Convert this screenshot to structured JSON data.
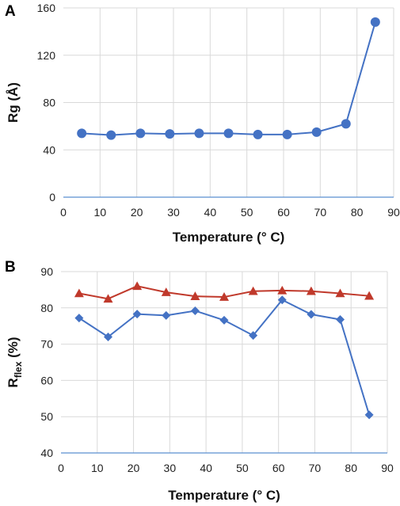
{
  "colors": {
    "blue": "#4472c4",
    "red": "#c0392b",
    "grid": "#d9d9d9",
    "axis": "#5b8fd1"
  },
  "chart_data": [
    {
      "type": "line",
      "panel_label": "A",
      "xlabel": "Temperature (° C)",
      "ylabel": "Rg (Å)",
      "xlim": [
        0,
        90
      ],
      "ylim": [
        0,
        160
      ],
      "x_ticks": [
        0,
        10,
        20,
        30,
        40,
        50,
        60,
        70,
        80,
        90
      ],
      "y_ticks": [
        0,
        40,
        80,
        120,
        160
      ],
      "grid": true,
      "series": [
        {
          "marker": "circle",
          "color": "#4472c4",
          "x": [
            5,
            13,
            21,
            29,
            37,
            45,
            53,
            61,
            69,
            77,
            85
          ],
          "y": [
            54,
            52.5,
            54,
            53.5,
            54,
            54,
            53,
            53,
            55,
            62,
            148
          ]
        }
      ]
    },
    {
      "type": "line",
      "panel_label": "B",
      "xlabel": "Temperature (° C)",
      "ylabel_main": "R",
      "ylabel_sub": "flex",
      "ylabel_tail": " (%)",
      "xlim": [
        0,
        90
      ],
      "ylim": [
        40,
        90
      ],
      "x_ticks": [
        0,
        10,
        20,
        30,
        40,
        50,
        60,
        70,
        80,
        90
      ],
      "y_ticks": [
        40,
        50,
        60,
        70,
        80,
        90
      ],
      "grid": true,
      "series": [
        {
          "marker": "triangle",
          "color": "#c0392b",
          "x": [
            5,
            13,
            21,
            29,
            37,
            45,
            53,
            61,
            69,
            77,
            85
          ],
          "y": [
            84,
            82.5,
            86,
            84.3,
            83.2,
            83,
            84.6,
            84.8,
            84.6,
            84,
            83.3
          ]
        },
        {
          "marker": "diamond",
          "color": "#4472c4",
          "x": [
            5,
            13,
            21,
            29,
            37,
            45,
            53,
            61,
            69,
            77,
            85
          ],
          "y": [
            77.2,
            72,
            78.3,
            77.9,
            79.2,
            76.6,
            72.4,
            82.2,
            78.2,
            76.8,
            50.5
          ]
        }
      ]
    }
  ]
}
